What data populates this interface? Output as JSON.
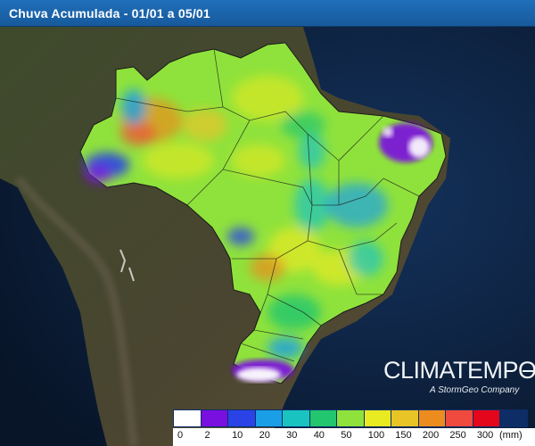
{
  "header": {
    "title": "Chuva Acumulada - 01/01 a 05/01"
  },
  "logo": {
    "brand": "CLIMATEMPO",
    "tagline": "A StormGeo Company"
  },
  "legend": {
    "unit": "(mm)",
    "items": [
      {
        "label": "0",
        "color": "#ffffff"
      },
      {
        "label": "2",
        "color": "#7a10e0"
      },
      {
        "label": "10",
        "color": "#2a43e6"
      },
      {
        "label": "20",
        "color": "#1a9fe6"
      },
      {
        "label": "30",
        "color": "#19c3c0"
      },
      {
        "label": "40",
        "color": "#21c66e"
      },
      {
        "label": "50",
        "color": "#8fe23c"
      },
      {
        "label": "100",
        "color": "#e8ea22"
      },
      {
        "label": "150",
        "color": "#e8c427"
      },
      {
        "label": "200",
        "color": "#ec8c1f"
      },
      {
        "label": "250",
        "color": "#ef4a3d"
      },
      {
        "label": "300",
        "color": "#e4061a"
      },
      {
        "label": "",
        "color": "#0e2d66"
      }
    ]
  },
  "map": {
    "colors": {
      "ocean": "#0b1e3a",
      "land": "#47452e",
      "brazil_base": "#8fe23c",
      "border": "#1a1a1a"
    }
  }
}
